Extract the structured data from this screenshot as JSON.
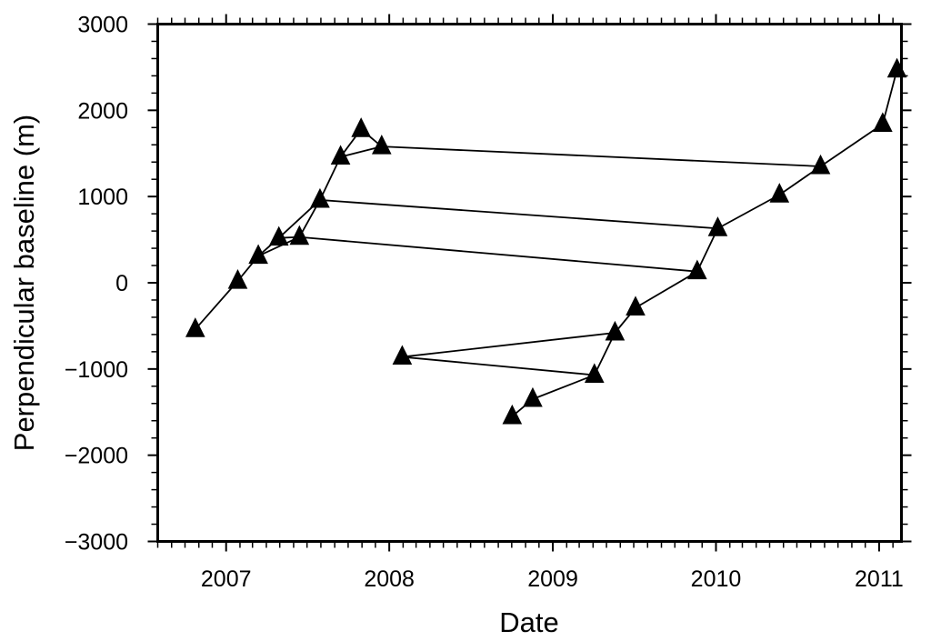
{
  "chart_data": {
    "type": "scatter",
    "title": "",
    "xlabel": "Date",
    "ylabel": "Perpendicular baseline (m)",
    "xlim": [
      "2006-08-01",
      "2011-02-20"
    ],
    "ylim": [
      -3000,
      3000
    ],
    "grid": false,
    "x_tick_labels": [
      "2007",
      "2008",
      "2009",
      "2010",
      "2011"
    ],
    "y_tick_labels": [
      "3000",
      "2000",
      "1000",
      "0",
      "−1000",
      "−2000",
      "−3000"
    ],
    "x_ticks": [
      "2007-01-01",
      "2008-01-01",
      "2009-01-01",
      "2010-01-01",
      "2011-01-01"
    ],
    "y_ticks": [
      3000,
      2000,
      1000,
      0,
      -1000,
      -2000,
      -3000
    ],
    "marker": "triangle",
    "color": "#000000",
    "points": [
      {
        "x": "2006-10-24",
        "y": -540
      },
      {
        "x": "2007-01-27",
        "y": 20
      },
      {
        "x": "2007-03-14",
        "y": 310
      },
      {
        "x": "2007-04-29",
        "y": 520
      },
      {
        "x": "2007-06-14",
        "y": 530
      },
      {
        "x": "2007-07-30",
        "y": 960
      },
      {
        "x": "2007-09-14",
        "y": 1460
      },
      {
        "x": "2007-10-30",
        "y": 1780
      },
      {
        "x": "2007-12-15",
        "y": 1580
      },
      {
        "x": "2008-01-30",
        "y": -860
      },
      {
        "x": "2008-10-02",
        "y": -1550
      },
      {
        "x": "2008-11-17",
        "y": -1350
      },
      {
        "x": "2009-04-04",
        "y": -1070
      },
      {
        "x": "2009-05-20",
        "y": -580
      },
      {
        "x": "2009-07-05",
        "y": -290
      },
      {
        "x": "2009-11-20",
        "y": 130
      },
      {
        "x": "2010-01-05",
        "y": 630
      },
      {
        "x": "2010-05-23",
        "y": 1020
      },
      {
        "x": "2010-08-23",
        "y": 1350
      },
      {
        "x": "2011-01-09",
        "y": 1840
      },
      {
        "x": "2011-02-10",
        "y": 2470
      }
    ],
    "connections": [
      [
        "2006-10-24",
        "2007-01-27"
      ],
      [
        "2007-01-27",
        "2007-03-14"
      ],
      [
        "2007-03-14",
        "2007-04-29"
      ],
      [
        "2007-03-14",
        "2007-06-14"
      ],
      [
        "2007-04-29",
        "2007-06-14"
      ],
      [
        "2007-04-29",
        "2007-07-30"
      ],
      [
        "2007-06-14",
        "2007-07-30"
      ],
      [
        "2007-07-30",
        "2007-09-14"
      ],
      [
        "2007-09-14",
        "2007-10-30"
      ],
      [
        "2007-09-14",
        "2007-12-15"
      ],
      [
        "2007-10-30",
        "2007-12-15"
      ],
      [
        "2007-12-15",
        "2010-08-23"
      ],
      [
        "2007-07-30",
        "2010-01-05"
      ],
      [
        "2007-06-14",
        "2009-11-20"
      ],
      [
        "2008-01-30",
        "2009-05-20"
      ],
      [
        "2008-01-30",
        "2009-04-04"
      ],
      [
        "2008-10-02",
        "2008-11-17"
      ],
      [
        "2008-11-17",
        "2009-04-04"
      ],
      [
        "2009-04-04",
        "2009-05-20"
      ],
      [
        "2009-05-20",
        "2009-07-05"
      ],
      [
        "2009-07-05",
        "2009-11-20"
      ],
      [
        "2009-11-20",
        "2010-01-05"
      ],
      [
        "2010-01-05",
        "2010-05-23"
      ],
      [
        "2010-05-23",
        "2010-08-23"
      ],
      [
        "2010-08-23",
        "2011-01-09"
      ],
      [
        "2011-01-09",
        "2011-02-10"
      ]
    ]
  }
}
